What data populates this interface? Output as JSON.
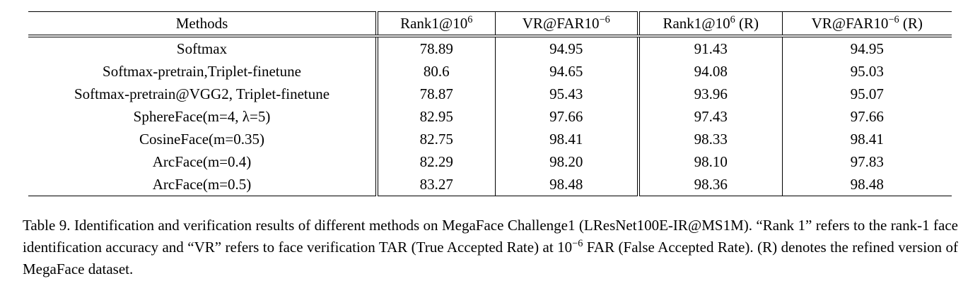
{
  "page": {
    "background_color": "#ffffff",
    "text_color": "#000000"
  },
  "table": {
    "headers": [
      {
        "pre": "Methods",
        "sup": "",
        "post": ""
      },
      {
        "pre": "Rank1@10",
        "sup": "6",
        "post": ""
      },
      {
        "pre": "VR@FAR10",
        "sup": "−6",
        "post": ""
      },
      {
        "pre": "Rank1@10",
        "sup": "6",
        "post": " (R)"
      },
      {
        "pre": "VR@FAR10",
        "sup": "−6",
        "post": " (R)"
      }
    ],
    "rows": [
      {
        "method": "Softmax",
        "values": [
          "78.89",
          "94.95",
          "91.43",
          "94.95"
        ],
        "bold_values": false
      },
      {
        "method": "Softmax-pretrain,Triplet-finetune",
        "values": [
          "80.6",
          "94.65",
          "94.08",
          "95.03"
        ],
        "bold_values": false
      },
      {
        "method": "Softmax-pretrain@VGG2, Triplet-finetune",
        "values": [
          "78.87",
          "95.43",
          "93.96",
          "95.07"
        ],
        "bold_values": false
      },
      {
        "method": "SphereFace(m=4, λ=5)",
        "values": [
          "82.95",
          "97.66",
          "97.43",
          "97.66"
        ],
        "bold_values": false
      },
      {
        "method": "CosineFace(m=0.35)",
        "values": [
          "82.75",
          "98.41",
          "98.33",
          "98.41"
        ],
        "bold_values": false
      },
      {
        "method": "ArcFace(m=0.4)",
        "values": [
          "82.29",
          "98.20",
          "98.10",
          "97.83"
        ],
        "bold_values": false
      },
      {
        "method": "ArcFace(m=0.5)",
        "values": [
          "83.27",
          "98.48",
          "98.36",
          "98.48"
        ],
        "bold_values": true
      }
    ]
  },
  "caption": {
    "part1": "Table 9. Identification and verification results of different methods on MegaFace Challenge1 (LResNet100E-IR@MS1M). “Rank 1” refers to the rank-1 face identification accuracy and “VR” refers to face verification TAR (True Accepted Rate) at 10",
    "sup": "−6",
    "part2": " FAR (False Accepted Rate). (R) denotes the refined version of MegaFace dataset."
  }
}
